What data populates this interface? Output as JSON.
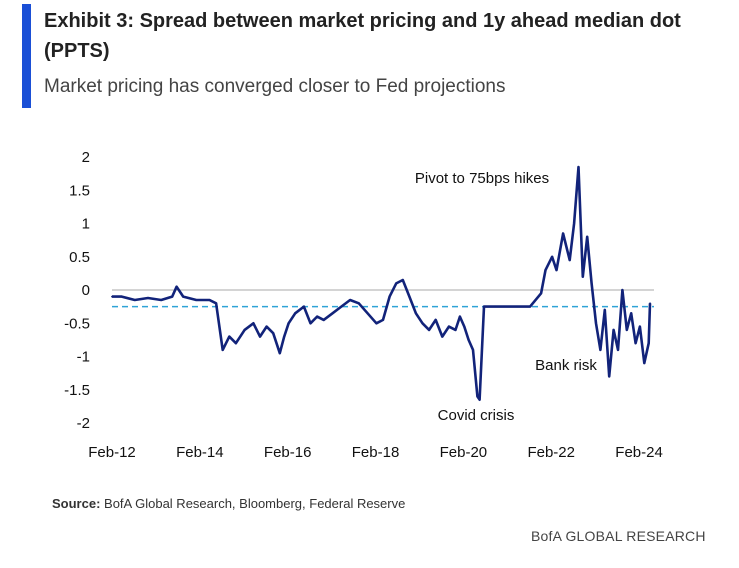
{
  "title": "Exhibit 3: Spread between market pricing and 1y ahead median dot (PPTS)",
  "subtitle": "Market pricing has converged closer to Fed projections",
  "source_label": "Source:",
  "source_text": "BofA Global Research, Bloomberg, Federal Reserve",
  "brand": "BofA GLOBAL RESEARCH",
  "colors": {
    "accent": "#1a4fd6",
    "series": "#12237a",
    "reference": "#2fa3d6",
    "zero_line": "#bbbbbb"
  },
  "chart_data": {
    "type": "line",
    "title": "Exhibit 3: Spread between market pricing and 1y ahead median dot (PPTS)",
    "ylim": [
      -2,
      2
    ],
    "yticks": [
      2,
      1.5,
      1,
      0.5,
      0,
      -0.5,
      -1,
      -1.5,
      -2
    ],
    "ytick_labels": [
      "2",
      "1.5",
      "1",
      "0.5",
      "0",
      "-0.5",
      "-1",
      "-1.5",
      "-2"
    ],
    "xlim": [
      2012.08,
      2024.42
    ],
    "xticks": [
      2012.08,
      2014.08,
      2016.08,
      2018.08,
      2020.08,
      2022.08,
      2024.08
    ],
    "xtick_labels": [
      "Feb-12",
      "Feb-14",
      "Feb-16",
      "Feb-18",
      "Feb-20",
      "Feb-22",
      "Feb-24"
    ],
    "grid": false,
    "reference_lines": [
      {
        "y": 0,
        "style": "solid"
      },
      {
        "y": -0.25,
        "style": "dashed"
      }
    ],
    "annotations": [
      {
        "text": "Pivot to 75bps hikes"
      },
      {
        "text": "Bank risk"
      },
      {
        "text": "Covid crisis"
      }
    ],
    "series": [
      {
        "x": [
          2012.08,
          2012.3,
          2012.6,
          2012.9,
          2013.2,
          2013.45,
          2013.55,
          2013.7,
          2014.0,
          2014.3,
          2014.45,
          2014.6,
          2014.75,
          2014.9,
          2015.1,
          2015.3,
          2015.45,
          2015.6,
          2015.75,
          2015.9,
          2016.0,
          2016.1,
          2016.25,
          2016.45,
          2016.6,
          2016.75,
          2016.9,
          2017.1,
          2017.3,
          2017.5,
          2017.7,
          2017.9,
          2018.1,
          2018.25,
          2018.4,
          2018.55,
          2018.7,
          2018.85,
          2019.0,
          2019.15,
          2019.3,
          2019.45,
          2019.6,
          2019.75,
          2019.9,
          2020.0,
          2020.1,
          2020.2,
          2020.3,
          2020.4,
          2020.45,
          2020.55,
          2020.8,
          2021.0,
          2021.3,
          2021.6,
          2021.85,
          2021.95,
          2022.1,
          2022.2,
          2022.35,
          2022.5,
          2022.6,
          2022.7,
          2022.8,
          2022.9,
          2023.0,
          2023.1,
          2023.2,
          2023.3,
          2023.4,
          2023.5,
          2023.6,
          2023.7,
          2023.8,
          2023.9,
          2024.0,
          2024.1,
          2024.2,
          2024.3,
          2024.33
        ],
        "y": [
          -0.1,
          -0.1,
          -0.15,
          -0.12,
          -0.15,
          -0.1,
          0.05,
          -0.1,
          -0.15,
          -0.15,
          -0.2,
          -0.9,
          -0.7,
          -0.8,
          -0.6,
          -0.5,
          -0.7,
          -0.55,
          -0.65,
          -0.95,
          -0.7,
          -0.5,
          -0.35,
          -0.25,
          -0.5,
          -0.4,
          -0.45,
          -0.35,
          -0.25,
          -0.15,
          -0.2,
          -0.35,
          -0.5,
          -0.45,
          -0.1,
          0.1,
          0.15,
          -0.1,
          -0.35,
          -0.5,
          -0.6,
          -0.45,
          -0.7,
          -0.55,
          -0.6,
          -0.4,
          -0.55,
          -0.75,
          -0.9,
          -1.6,
          -1.65,
          -0.25,
          -0.25,
          -0.25,
          -0.25,
          -0.25,
          -0.05,
          0.3,
          0.5,
          0.3,
          0.85,
          0.45,
          1.0,
          1.85,
          0.2,
          0.8,
          0.1,
          -0.5,
          -0.9,
          -0.3,
          -1.3,
          -0.6,
          -0.9,
          0.0,
          -0.6,
          -0.35,
          -0.8,
          -0.55,
          -1.1,
          -0.8,
          -0.2
        ]
      }
    ]
  }
}
